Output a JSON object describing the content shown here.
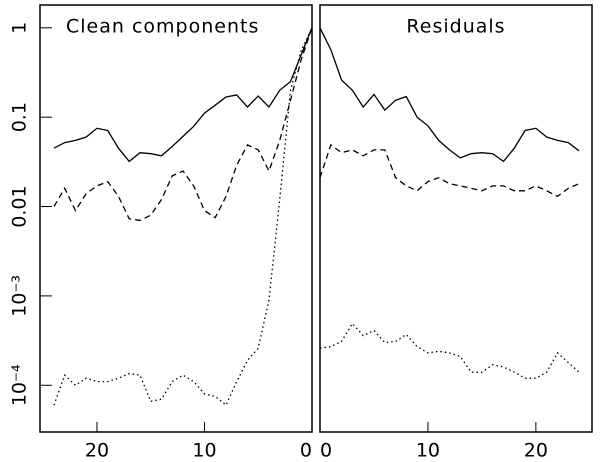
{
  "chart_data": [
    {
      "type": "line",
      "title": "Clean components",
      "log_y": true,
      "x": [
        24,
        23,
        22,
        21,
        20,
        19,
        18,
        17,
        16,
        15,
        14,
        13,
        12,
        11,
        10,
        9,
        8,
        7,
        6,
        5,
        4,
        3,
        2,
        1,
        0
      ],
      "xlim": [
        25.3,
        0
      ],
      "xticks": [
        0,
        10,
        20
      ],
      "ylim": [
        3e-05,
        1.8
      ],
      "yticks": [
        1,
        0.1,
        0.01,
        {
          "value": 0.001,
          "label": "10⁻³"
        },
        {
          "value": 0.0001,
          "label": "10⁻⁴"
        }
      ],
      "series": [
        {
          "style": "solid",
          "color": "#000000",
          "values": [
            0.045,
            0.052,
            0.055,
            0.06,
            0.075,
            0.071,
            0.045,
            0.032,
            0.04,
            0.039,
            0.037,
            0.047,
            0.061,
            0.079,
            0.111,
            0.136,
            0.168,
            0.177,
            0.13,
            0.172,
            0.13,
            0.2,
            0.25,
            0.5,
            1
          ]
        },
        {
          "style": "dashed",
          "color": "#000000",
          "values": [
            0.01,
            0.016,
            0.009,
            0.014,
            0.017,
            0.019,
            0.013,
            0.0073,
            0.007,
            0.008,
            0.012,
            0.022,
            0.025,
            0.017,
            0.009,
            0.0075,
            0.013,
            0.029,
            0.049,
            0.043,
            0.025,
            0.055,
            0.155,
            0.44,
            1
          ]
        },
        {
          "style": "dotted",
          "color": "#000000",
          "values": [
            6e-05,
            0.00013,
            0.0001,
            0.00012,
            0.00011,
            0.00011,
            0.00012,
            0.000135,
            0.00013,
            6.6e-05,
            7e-05,
            0.00011,
            0.00013,
            0.00011,
            8e-05,
            7.5e-05,
            6e-05,
            0.00011,
            0.00019,
            0.00026,
            0.0009,
            0.012,
            0.2,
            0.56,
            1
          ]
        }
      ]
    },
    {
      "type": "line",
      "title": "Residuals",
      "log_y": true,
      "x": [
        0,
        1,
        2,
        3,
        4,
        5,
        6,
        7,
        8,
        9,
        10,
        11,
        12,
        13,
        14,
        15,
        16,
        17,
        18,
        19,
        20,
        21,
        22,
        23,
        24
      ],
      "xlim": [
        0,
        25.2
      ],
      "xticks": [
        0,
        10,
        20
      ],
      "ylim": [
        3e-05,
        1.8
      ],
      "series": [
        {
          "style": "solid",
          "color": "#000000",
          "values": [
            1,
            0.57,
            0.26,
            0.2,
            0.13,
            0.18,
            0.12,
            0.155,
            0.17,
            0.1,
            0.08,
            0.055,
            0.043,
            0.035,
            0.039,
            0.04,
            0.039,
            0.032,
            0.045,
            0.071,
            0.075,
            0.06,
            0.055,
            0.052,
            0.042
          ]
        },
        {
          "style": "dashed",
          "color": "#000000",
          "values": [
            0.021,
            0.049,
            0.04,
            0.043,
            0.037,
            0.043,
            0.043,
            0.021,
            0.017,
            0.015,
            0.019,
            0.021,
            0.018,
            0.017,
            0.016,
            0.015,
            0.017,
            0.017,
            0.015,
            0.015,
            0.017,
            0.015,
            0.013,
            0.016,
            0.018
          ]
        },
        {
          "style": "dotted",
          "color": "#000000",
          "values": [
            0.00026,
            0.00027,
            0.00031,
            0.00049,
            0.00036,
            0.00041,
            0.0003,
            0.00031,
            0.00037,
            0.00027,
            0.00023,
            0.00024,
            0.00023,
            0.00021,
            0.00014,
            0.00014,
            0.00017,
            0.00016,
            0.00014,
            0.00012,
            0.00012,
            0.00014,
            0.00023,
            0.00018,
            0.00014
          ]
        }
      ]
    }
  ]
}
